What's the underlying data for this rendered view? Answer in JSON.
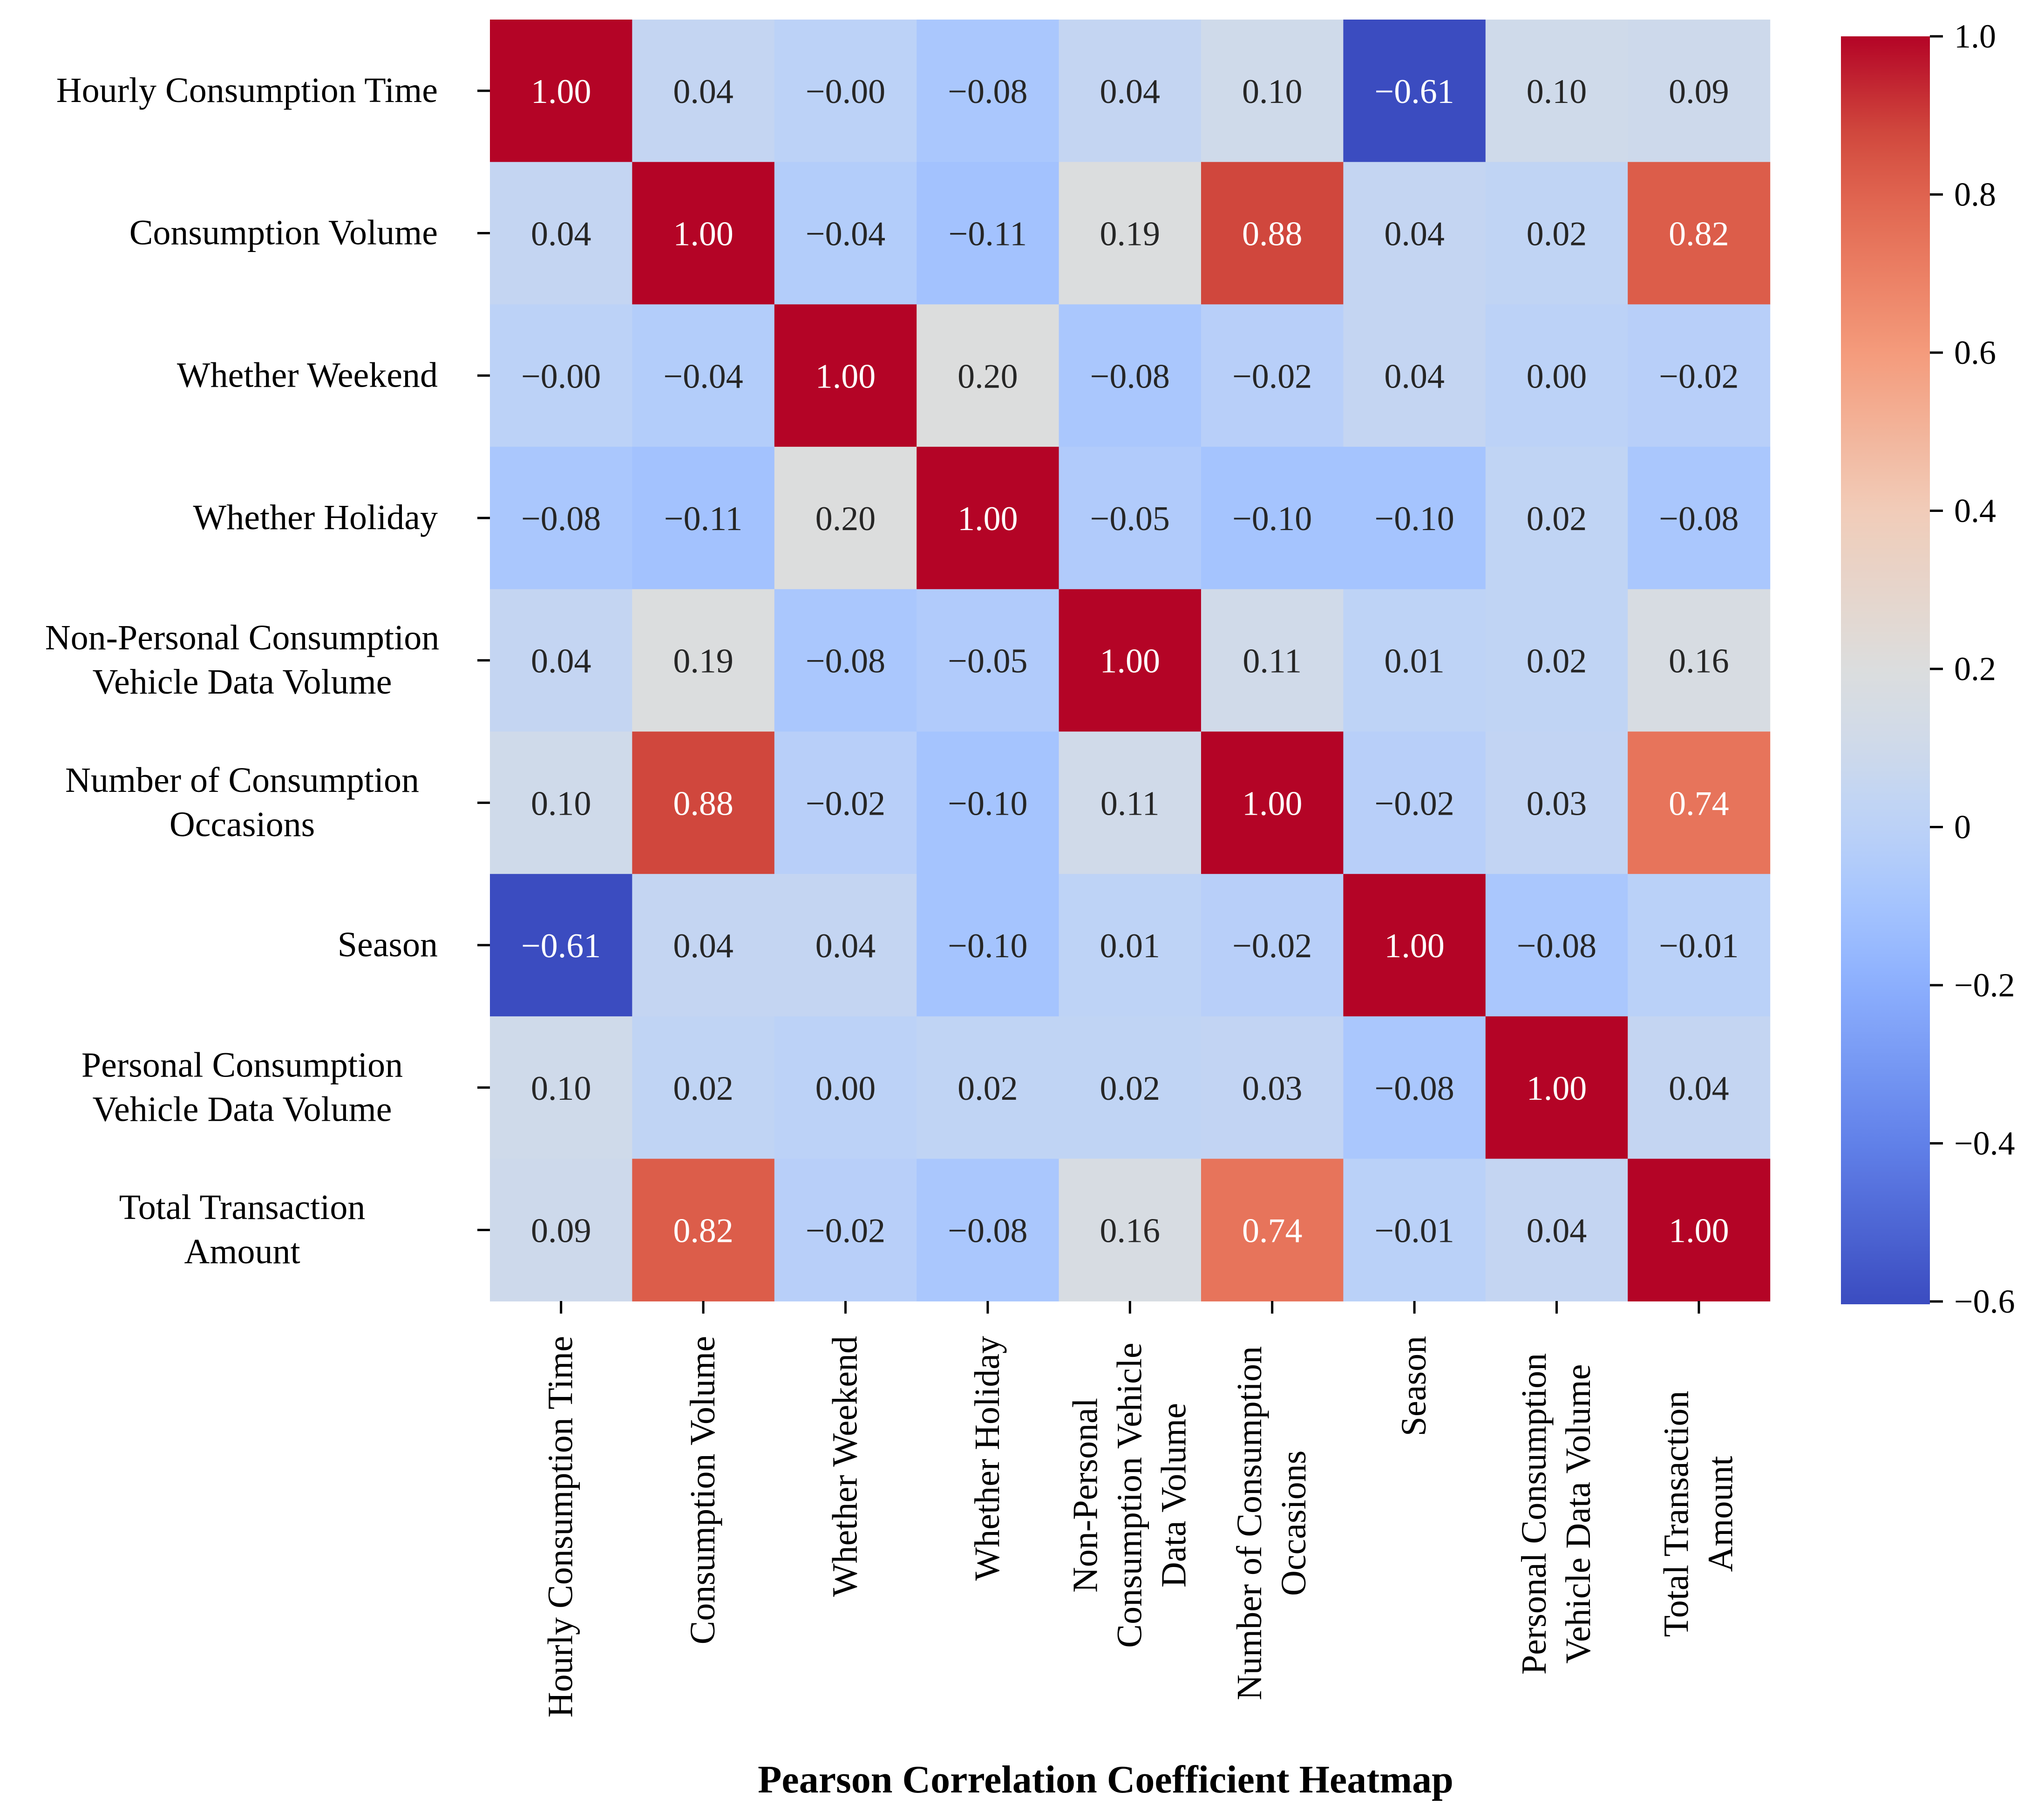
{
  "chart_data": {
    "type": "heatmap",
    "title": "Pearson Correlation Coefficient Heatmap",
    "colormap": "coolwarm",
    "colorbar": {
      "range": [
        -0.61,
        1.0
      ],
      "ticks": [
        1.0,
        0.8,
        0.6,
        0.4,
        0.2,
        0,
        -0.2,
        -0.4,
        -0.6
      ],
      "tick_labels": [
        "1.0",
        "0.8",
        "0.6",
        "0.4",
        "0.2",
        "0",
        "−0.2",
        "−0.4",
        "−0.6"
      ]
    },
    "labels": [
      [
        "Hourly Consumption Time"
      ],
      [
        "Consumption Volume"
      ],
      [
        "Whether Weekend"
      ],
      [
        "Whether Holiday"
      ],
      [
        "Non-Personal Consumption",
        "Vehicle Data Volume"
      ],
      [
        "Number of Consumption",
        "Occasions"
      ],
      [
        "Season"
      ],
      [
        "Personal Consumption",
        "Vehicle Data Volume"
      ],
      [
        "Total Transaction",
        "Amount"
      ]
    ],
    "x_labels": [
      [
        "Hourly Consumption Time"
      ],
      [
        "Consumption Volume"
      ],
      [
        "Whether Weekend"
      ],
      [
        "Whether Holiday"
      ],
      [
        "Non-Personal",
        "Consumption Vehicle",
        "Data Volume"
      ],
      [
        "Number of Consumption",
        "Occasions"
      ],
      [
        "Season"
      ],
      [
        "Personal Consumption",
        "Vehicle Data Volume"
      ],
      [
        "Total Transaction",
        "Amount"
      ]
    ],
    "matrix": [
      [
        1.0,
        0.04,
        -0.0,
        -0.08,
        0.04,
        0.1,
        -0.61,
        0.1,
        0.09
      ],
      [
        0.04,
        1.0,
        -0.04,
        -0.11,
        0.19,
        0.88,
        0.04,
        0.02,
        0.82
      ],
      [
        -0.0,
        -0.04,
        1.0,
        0.2,
        -0.08,
        -0.02,
        0.04,
        0.0,
        -0.02
      ],
      [
        -0.08,
        -0.11,
        0.2,
        1.0,
        -0.05,
        -0.1,
        -0.1,
        0.02,
        -0.08
      ],
      [
        0.04,
        0.19,
        -0.08,
        -0.05,
        1.0,
        0.11,
        0.01,
        0.02,
        0.16
      ],
      [
        0.1,
        0.88,
        -0.02,
        -0.1,
        0.11,
        1.0,
        -0.02,
        0.03,
        0.74
      ],
      [
        -0.61,
        0.04,
        0.04,
        -0.1,
        0.01,
        -0.02,
        1.0,
        -0.08,
        -0.01
      ],
      [
        0.1,
        0.02,
        0.0,
        0.02,
        0.02,
        0.03,
        -0.08,
        1.0,
        0.04
      ],
      [
        0.09,
        0.82,
        -0.02,
        -0.08,
        0.16,
        0.74,
        -0.01,
        0.04,
        1.0
      ]
    ],
    "cell_text": [
      [
        "1.00",
        "0.04",
        "−0.00",
        "−0.08",
        "0.04",
        "0.10",
        "−0.61",
        "0.10",
        "0.09"
      ],
      [
        "0.04",
        "1.00",
        "−0.04",
        "−0.11",
        "0.19",
        "0.88",
        "0.04",
        "0.02",
        "0.82"
      ],
      [
        "−0.00",
        "−0.04",
        "1.00",
        "0.20",
        "−0.08",
        "−0.02",
        "0.04",
        "0.00",
        "−0.02"
      ],
      [
        "−0.08",
        "−0.11",
        "0.20",
        "1.00",
        "−0.05",
        "−0.10",
        "−0.10",
        "0.02",
        "−0.08"
      ],
      [
        "0.04",
        "0.19",
        "−0.08",
        "−0.05",
        "1.00",
        "0.11",
        "0.01",
        "0.02",
        "0.16"
      ],
      [
        "0.10",
        "0.88",
        "−0.02",
        "−0.10",
        "0.11",
        "1.00",
        "−0.02",
        "0.03",
        "0.74"
      ],
      [
        "−0.61",
        "0.04",
        "0.04",
        "−0.10",
        "0.01",
        "−0.02",
        "1.00",
        "−0.08",
        "−0.01"
      ],
      [
        "0.10",
        "0.02",
        "0.00",
        "0.02",
        "0.02",
        "0.03",
        "−0.08",
        "1.00",
        "0.04"
      ],
      [
        "0.09",
        "0.82",
        "−0.02",
        "−0.08",
        "0.16",
        "0.74",
        "−0.01",
        "0.04",
        "1.00"
      ]
    ]
  },
  "colors": {
    "stops": [
      [
        -0.61,
        "#3b4cc0"
      ],
      [
        -0.4,
        "#6282ea"
      ],
      [
        -0.2,
        "#8db0fe"
      ],
      [
        -0.11,
        "#a3c2fe"
      ],
      [
        -0.08,
        "#aac7fd"
      ],
      [
        0.0,
        "#bcd2f7"
      ],
      [
        0.1,
        "#cfdaea"
      ],
      [
        0.2,
        "#dcdddd"
      ],
      [
        0.4,
        "#f1ccb8"
      ],
      [
        0.6,
        "#f49a7b"
      ],
      [
        0.74,
        "#e7745b"
      ],
      [
        0.82,
        "#dc5d4a"
      ],
      [
        0.88,
        "#d0473d"
      ],
      [
        1.0,
        "#b40426"
      ]
    ],
    "text_dark": "#262626",
    "text_light": "#ffffff"
  }
}
